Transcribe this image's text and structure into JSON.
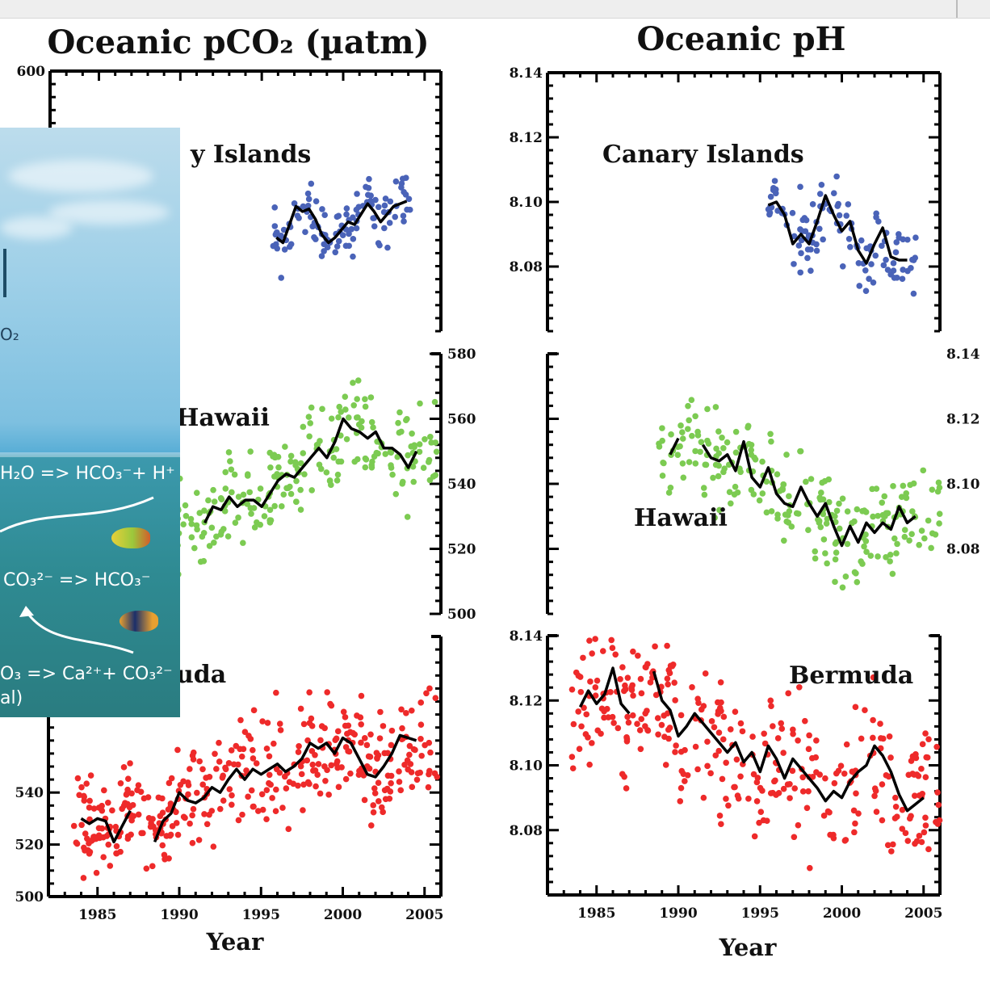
{
  "panels": {
    "pco2_title": "Oceanic  pCO₂ (µatm)",
    "ph_title": "Oceanic pH",
    "xlabel": "Year",
    "x_ticks": [
      "1985",
      "1990",
      "1995",
      "2000",
      "2005"
    ],
    "left_top_ytick": "600",
    "left_mid_yticks": [
      "580",
      "560",
      "540",
      "520",
      "500"
    ],
    "left_bot_yticks": [
      "540",
      "520",
      "500"
    ],
    "right_top_yticks": [
      "8.14",
      "8.12",
      "8.10",
      "8.08"
    ],
    "right_mid_yticks": [
      "8.14",
      "8.12",
      "8.10",
      "8.08"
    ],
    "right_bot_yticks": [
      "8.14",
      "8.12",
      "8.10",
      "8.08"
    ],
    "site_labels": {
      "canary_left": "y Islands",
      "canary_right": "Canary Islands",
      "hawaii_left": "Hawaii",
      "hawaii_right": "Hawaii",
      "bermuda_left": "uda",
      "bermuda_right": "Bermuda"
    }
  },
  "inset": {
    "label_co2": "O₂",
    "eq1": "H₂O => HCO₃⁻+ H⁺",
    "eq2": "CO₃²⁻ => HCO₃⁻",
    "eq3": "O₃ => Ca²⁺+ CO₃²⁻",
    "eq3_tail": "al)"
  },
  "colors": {
    "canary": "#4a63b8",
    "hawaii": "#7ccb52",
    "bermuda": "#ee2a2a",
    "trend": "#000000"
  },
  "chart_data": [
    {
      "type": "scatter",
      "title": "Oceanic  pCO₂ (µatm)",
      "xlabel": "Year",
      "xlim": [
        1982,
        2006
      ],
      "series": [
        {
          "name": "Canary Islands",
          "ylim": [
            500,
            600
          ],
          "trend_x": [
            1995.9,
            1996.3,
            1996.7,
            1997.1,
            1997.5,
            1997.9,
            1998.3,
            1998.7,
            1999.1,
            1999.5,
            1999.9,
            2000.3,
            2000.7,
            2001.1,
            2001.5,
            2001.9,
            2002.3,
            2002.7,
            2003.1,
            2003.5,
            2003.9
          ],
          "trend_y": [
            536,
            534,
            541,
            548,
            546,
            547,
            543,
            537,
            534,
            536,
            539,
            542,
            541,
            545,
            549,
            546,
            542,
            545,
            548,
            549,
            550
          ]
        },
        {
          "name": "Hawaii",
          "ylim": [
            500,
            580
          ],
          "trend_x": [
            1991.5,
            1992,
            1992.5,
            1993,
            1993.5,
            1994,
            1994.5,
            1995,
            1995.5,
            1996,
            1996.5,
            1997,
            1997.5,
            1998,
            1998.5,
            1999,
            1999.5,
            2000,
            2000.5,
            2001,
            2001.5,
            2002,
            2002.5,
            2003,
            2003.5,
            2004,
            2004.5
          ],
          "trend_y": [
            528,
            533,
            532,
            536,
            533,
            535,
            535,
            533,
            537,
            541,
            543,
            542,
            545,
            548,
            551,
            548,
            553,
            560,
            557,
            556,
            554,
            556,
            551,
            551,
            549,
            545,
            550
          ]
        },
        {
          "name": "Bermuda",
          "ylim": [
            500,
            600
          ],
          "trend_x": [
            1984,
            1984.5,
            1985,
            1985.5,
            1986,
            1986.5,
            1987,
            1988.5,
            1989,
            1989.5,
            1990,
            1990.5,
            1991,
            1991.5,
            1992,
            1992.5,
            1993,
            1993.5,
            1994,
            1994.5,
            1995,
            1995.5,
            1996,
            1996.5,
            1997,
            1997.5,
            1998,
            1998.5,
            1999,
            1999.5,
            2000,
            2000.5,
            2001,
            2001.5,
            2002,
            2002.5,
            2003,
            2003.5,
            2004,
            2004.5
          ],
          "trend_y": [
            530,
            528,
            530,
            529,
            521,
            527,
            533,
            521,
            529,
            532,
            540,
            537,
            536,
            538,
            542,
            540,
            545,
            549,
            545,
            549,
            547,
            549,
            551,
            548,
            550,
            553,
            559,
            557,
            559,
            555,
            561,
            559,
            553,
            547,
            546,
            550,
            555,
            562,
            561,
            560
          ]
        }
      ]
    },
    {
      "type": "scatter",
      "title": "Oceanic pH",
      "xlabel": "Year",
      "xlim": [
        1982,
        2006
      ],
      "series": [
        {
          "name": "Canary Islands",
          "ylim": [
            8.06,
            8.14
          ],
          "trend_x": [
            1995.5,
            1996,
            1996.5,
            1997,
            1997.5,
            1998,
            1998.5,
            1999,
            1999.5,
            2000,
            2000.5,
            2001,
            2001.5,
            2002,
            2002.5,
            2003,
            2003.5,
            2004
          ],
          "trend_y": [
            8.099,
            8.1,
            8.096,
            8.087,
            8.09,
            8.087,
            8.094,
            8.102,
            8.096,
            8.091,
            8.094,
            8.085,
            8.081,
            8.087,
            8.092,
            8.083,
            8.082,
            8.082
          ]
        },
        {
          "name": "Hawaii",
          "ylim": [
            8.06,
            8.14
          ],
          "trend_x": [
            1989.5,
            1990,
            1991.5,
            1992,
            1992.5,
            1993,
            1993.5,
            1994,
            1994.5,
            1995,
            1995.5,
            1996,
            1996.5,
            1997,
            1997.5,
            1998,
            1998.5,
            1999,
            1999.5,
            2000,
            2000.5,
            2001,
            2001.5,
            2002,
            2002.5,
            2003,
            2003.5,
            2004,
            2004.5
          ],
          "trend_y": [
            8.109,
            8.114,
            8.112,
            8.108,
            8.107,
            8.109,
            8.104,
            8.113,
            8.102,
            8.099,
            8.105,
            8.097,
            8.094,
            8.093,
            8.099,
            8.094,
            8.09,
            8.094,
            8.087,
            8.081,
            8.087,
            8.082,
            8.088,
            8.085,
            8.088,
            8.086,
            8.093,
            8.088,
            8.09
          ]
        },
        {
          "name": "Bermuda",
          "ylim": [
            8.06,
            8.14
          ],
          "trend_x": [
            1984,
            1984.5,
            1985,
            1985.5,
            1986,
            1986.5,
            1987,
            1988.5,
            1989,
            1989.5,
            1990,
            1990.5,
            1991,
            1991.5,
            1992,
            1992.5,
            1993,
            1993.5,
            1994,
            1994.5,
            1995,
            1995.5,
            1996,
            1996.5,
            1997,
            1997.5,
            1998,
            1998.5,
            1999,
            1999.5,
            2000,
            2000.5,
            2001,
            2001.5,
            2002,
            2002.5,
            2003,
            2003.5,
            2004,
            2004.5,
            2005
          ],
          "trend_y": [
            8.118,
            8.123,
            8.119,
            8.122,
            8.13,
            8.119,
            8.116,
            8.129,
            8.12,
            8.117,
            8.109,
            8.112,
            8.116,
            8.113,
            8.11,
            8.107,
            8.104,
            8.107,
            8.101,
            8.104,
            8.098,
            8.106,
            8.102,
            8.096,
            8.102,
            8.099,
            8.096,
            8.093,
            8.089,
            8.092,
            8.09,
            8.095,
            8.098,
            8.1,
            8.106,
            8.103,
            8.098,
            8.091,
            8.086,
            8.088,
            8.09
          ]
        }
      ]
    }
  ]
}
